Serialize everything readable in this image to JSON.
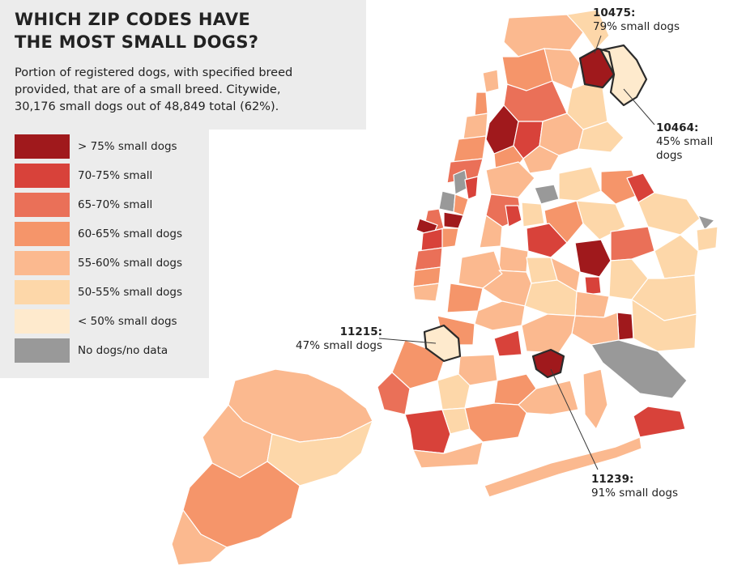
{
  "title_line1": "WHICH ZIP CODES HAVE",
  "title_line2": "THE MOST SMALL DOGS?",
  "description_line1": "Portion of registered dogs, with specified breed",
  "description_line2": "provided, that are of a small breed. Citywide,",
  "description_line3": "30,176 small dogs out of 48,849 total (62%).",
  "legend": [
    {
      "label": "> 75% small dogs",
      "color": "#a0191c"
    },
    {
      "label": "70-75% small",
      "color": "#d8423a"
    },
    {
      "label": "65-70% small",
      "color": "#ea7058"
    },
    {
      "label": "60-65% small dogs",
      "color": "#f5956a"
    },
    {
      "label": "55-60% small dogs",
      "color": "#fbb98f"
    },
    {
      "label": "50-55% small dogs",
      "color": "#fdd7a9"
    },
    {
      "label": "< 50% small dogs",
      "color": "#feeacd"
    },
    {
      "label": "No dogs/no data",
      "color": "#999999"
    }
  ],
  "callouts": {
    "c10475": {
      "zip": "10475:",
      "text": "79% small dogs"
    },
    "c10464": {
      "zip": "10464:",
      "text": "45% small dogs"
    },
    "c11215": {
      "zip": "11215:",
      "text": "47% small dogs"
    },
    "c11239": {
      "zip": "11239:",
      "text": "91% small dogs"
    }
  }
}
